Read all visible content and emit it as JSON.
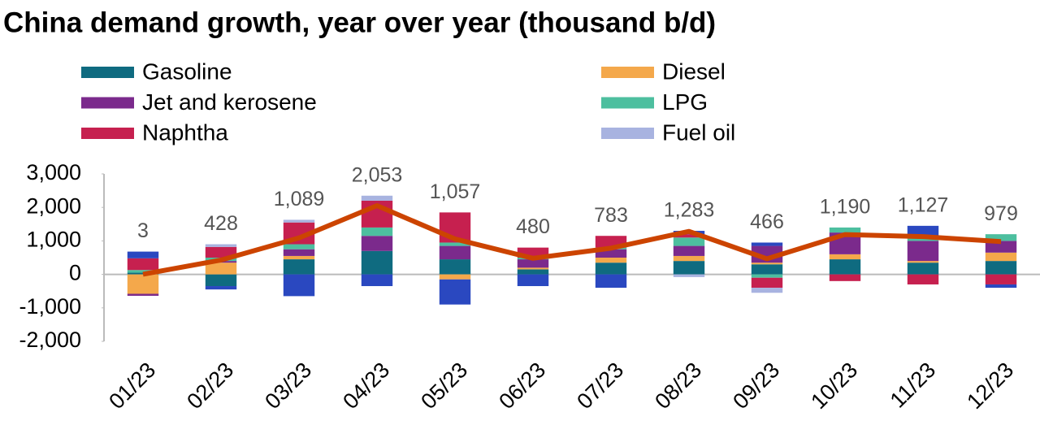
{
  "chart_data": {
    "type": "bar",
    "title": "China demand growth, year over year (thousand b/d)",
    "categories": [
      "01/23",
      "02/23",
      "03/23",
      "04/23",
      "05/23",
      "06/23",
      "07/23",
      "08/23",
      "09/23",
      "10/23",
      "11/23",
      "12/23"
    ],
    "series": [
      {
        "name": "Gasoline",
        "color": "#0f6b80",
        "values": [
          50,
          -350,
          450,
          700,
          450,
          150,
          350,
          400,
          300,
          450,
          350,
          400
        ]
      },
      {
        "name": "Diesel",
        "color": "#f4a84b",
        "values": [
          -580,
          350,
          100,
          0,
          -150,
          50,
          150,
          150,
          50,
          150,
          50,
          250
        ]
      },
      {
        "name": "Jet and kerosene",
        "color": "#7b2a8c",
        "values": [
          -60,
          50,
          200,
          450,
          400,
          250,
          250,
          300,
          500,
          650,
          600,
          350
        ]
      },
      {
        "name": "LPG",
        "color": "#4dbf9f",
        "values": [
          80,
          100,
          150,
          250,
          100,
          50,
          50,
          250,
          -100,
          150,
          100,
          200
        ]
      },
      {
        "name": "Naphtha",
        "color": "#c6204f",
        "values": [
          350,
          320,
          650,
          800,
          900,
          300,
          350,
          100,
          -300,
          -200,
          -300,
          -300
        ]
      },
      {
        "name": "Fuel oil",
        "color": "#a8b3e0",
        "values": [
          0,
          80,
          80,
          150,
          0,
          0,
          0,
          -80,
          -150,
          0,
          0,
          0
        ]
      },
      {
        "color": "#2a48c0",
        "values": [
          200,
          -100,
          -650,
          -350,
          -750,
          -350,
          -400,
          100,
          100,
          0,
          350,
          -100
        ]
      }
    ],
    "total": {
      "color": "#cc4400",
      "values": [
        3,
        428,
        1089,
        2053,
        1057,
        480,
        783,
        1283,
        466,
        1190,
        1127,
        979
      ],
      "value_labels": [
        "3",
        "428",
        "1,089",
        "2,053",
        "1,057",
        "480",
        "783",
        "1,283",
        "466",
        "1,190",
        "1,127",
        "979"
      ]
    },
    "ylim": [
      -2000,
      3000
    ],
    "yticks": [
      {
        "value": -2000,
        "label": "-2,000"
      },
      {
        "value": -1000,
        "label": "-1,000"
      },
      0,
      {
        "value": 1000,
        "label": "1,000"
      },
      {
        "value": 2000,
        "label": "2,000"
      },
      {
        "value": 3000,
        "label": "3,000"
      }
    ]
  }
}
